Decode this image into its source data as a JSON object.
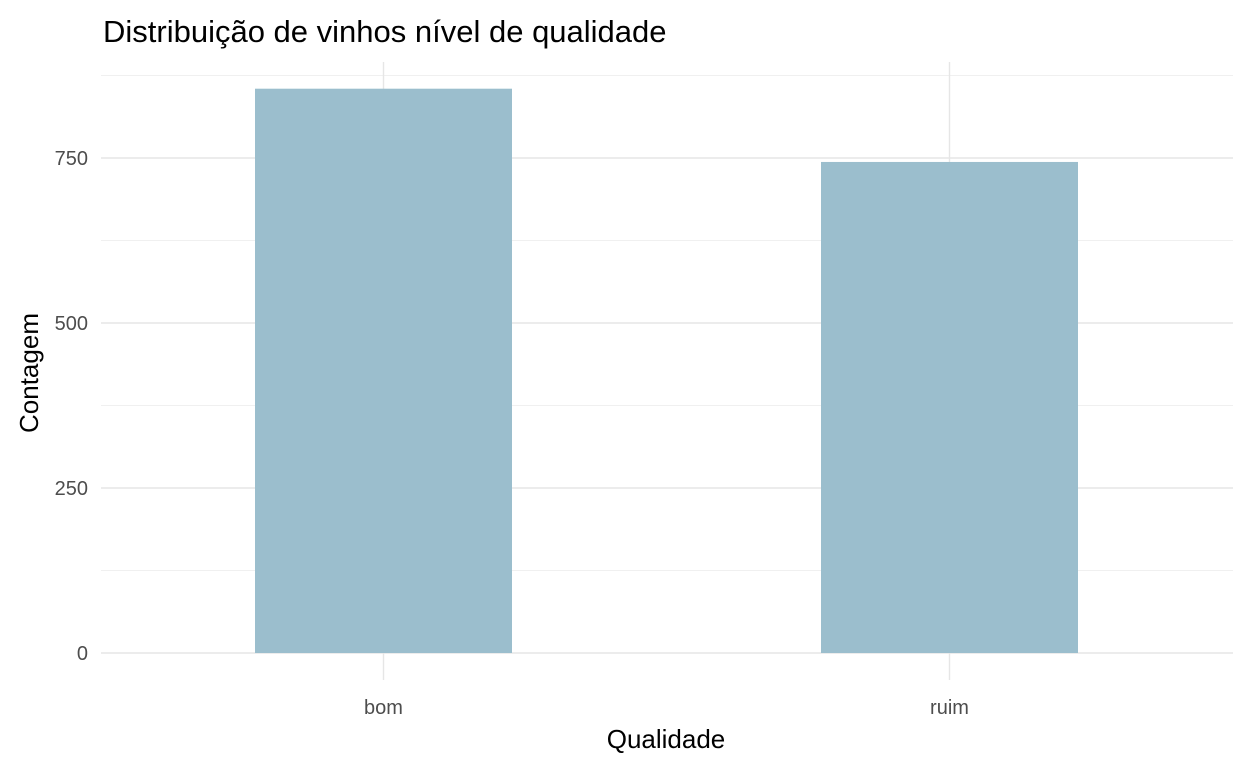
{
  "chart_data": {
    "type": "bar",
    "title": "Distribuição de vinhos nível de qualidade",
    "xlabel": "Qualidade",
    "ylabel": "Contagem",
    "categories": [
      "bom",
      "ruim"
    ],
    "values": [
      855,
      744
    ],
    "ylim": [
      0,
      875
    ],
    "yticks": [
      0,
      250,
      500,
      750
    ],
    "ytick_labels": [
      "0",
      "250",
      "500",
      "750"
    ],
    "grid": true,
    "bar_color": "#9bbecd"
  }
}
